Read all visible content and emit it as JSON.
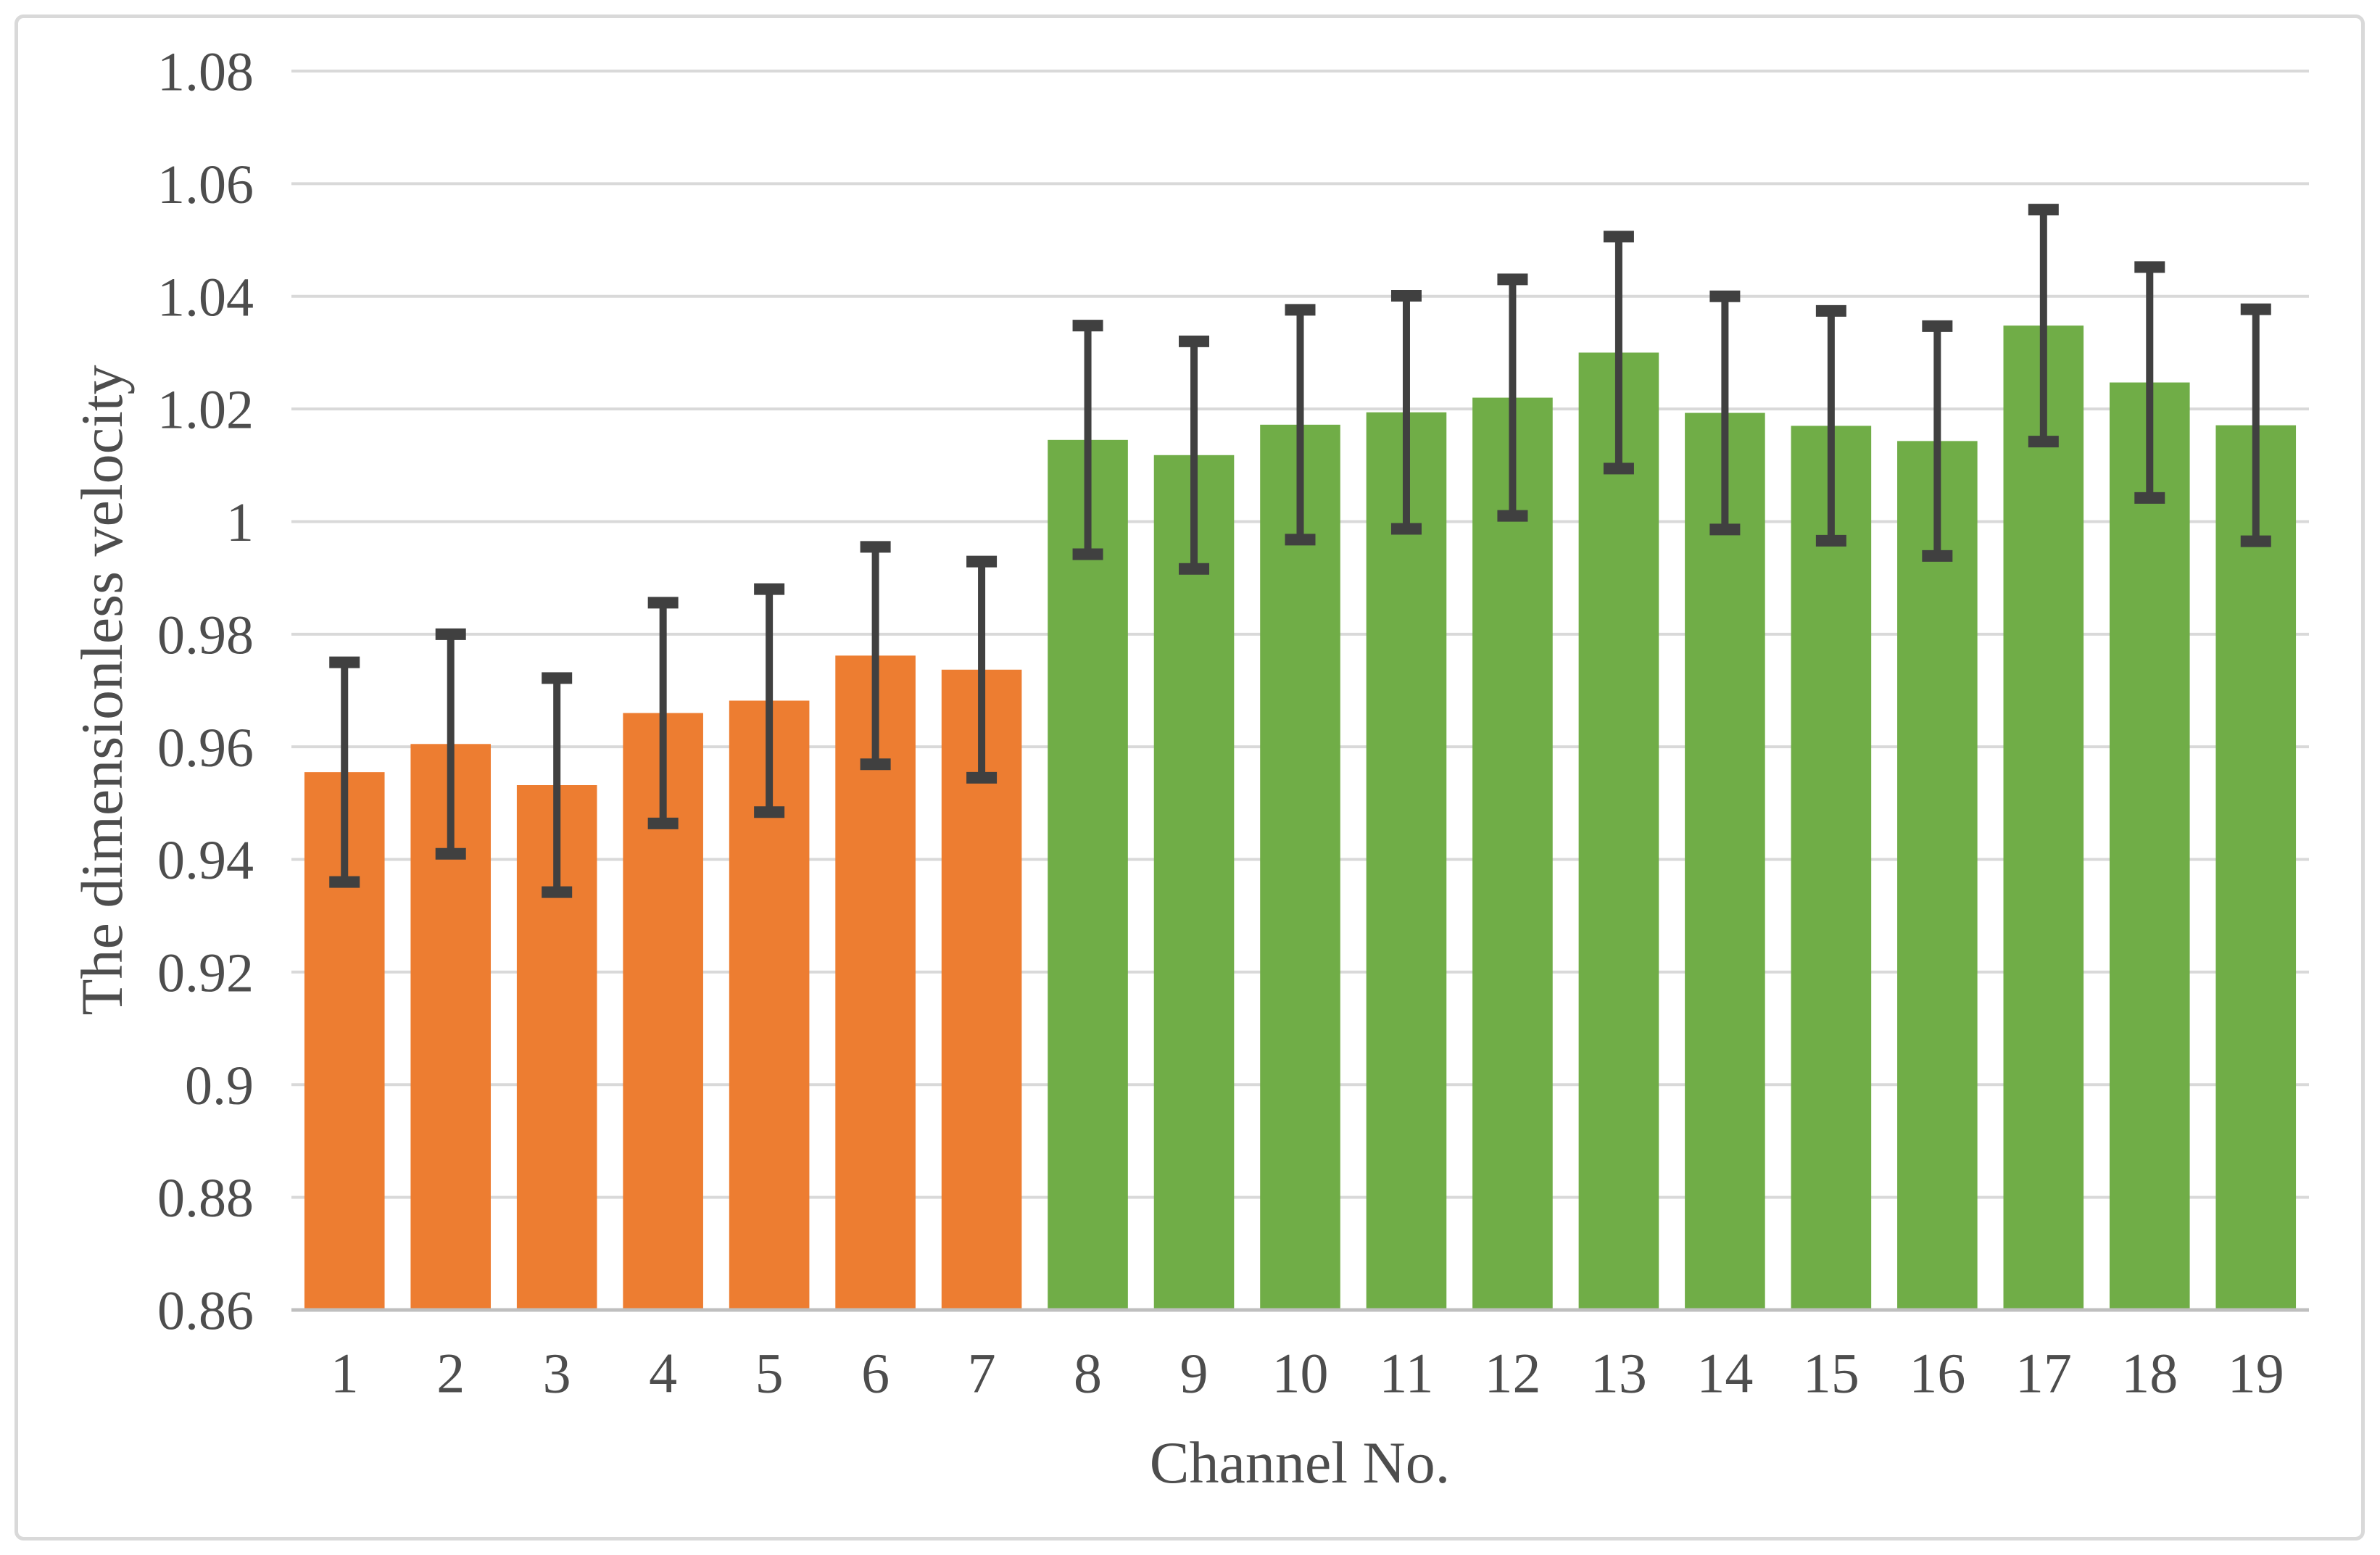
{
  "figure": {
    "background": "#ffffff",
    "border_color": "#d9d9d9"
  },
  "chart_data": {
    "type": "bar",
    "title": "",
    "xlabel": "Channel No.",
    "ylabel": "The dimensionless velocity",
    "categories": [
      "1",
      "2",
      "3",
      "4",
      "5",
      "6",
      "7",
      "8",
      "9",
      "10",
      "11",
      "12",
      "13",
      "14",
      "15",
      "16",
      "17",
      "18",
      "19"
    ],
    "values": [
      0.9555,
      0.9605,
      0.9532,
      0.966,
      0.9682,
      0.9762,
      0.9737,
      1.0145,
      1.0118,
      1.0172,
      1.0194,
      1.022,
      1.03,
      1.0193,
      1.017,
      1.0143,
      1.0348,
      1.0247,
      1.0171
    ],
    "error_bars": {
      "symmetric": true,
      "values": [
        0.0195,
        0.0195,
        0.019,
        0.0196,
        0.0198,
        0.0193,
        0.0192,
        0.0203,
        0.0202,
        0.0204,
        0.0207,
        0.021,
        0.0206,
        0.0207,
        0.0204,
        0.0204,
        0.0206,
        0.0205,
        0.0206
      ]
    },
    "bar_colors": [
      "#ED7D31",
      "#ED7D31",
      "#ED7D31",
      "#ED7D31",
      "#ED7D31",
      "#ED7D31",
      "#ED7D31",
      "#70AD47",
      "#70AD47",
      "#70AD47",
      "#70AD47",
      "#70AD47",
      "#70AD47",
      "#70AD47",
      "#70AD47",
      "#70AD47",
      "#70AD47",
      "#70AD47",
      "#70AD47"
    ],
    "series_colors": {
      "channels_1_to_7": "#ED7D31",
      "channels_8_to_19": "#70AD47"
    },
    "ylim": [
      0.86,
      1.08
    ],
    "yticks": [
      {
        "value": 1.08,
        "label": "1.08"
      },
      {
        "value": 1.06,
        "label": "1.06"
      },
      {
        "value": 1.04,
        "label": "1.04"
      },
      {
        "value": 1.02,
        "label": "1.02"
      },
      {
        "value": 1.0,
        "label": "1"
      },
      {
        "value": 0.98,
        "label": "0.98"
      },
      {
        "value": 0.96,
        "label": "0.96"
      },
      {
        "value": 0.94,
        "label": "0.94"
      },
      {
        "value": 0.92,
        "label": "0.92"
      },
      {
        "value": 0.9,
        "label": "0.9"
      },
      {
        "value": 0.88,
        "label": "0.88"
      },
      {
        "value": 0.86,
        "label": "0.86"
      }
    ],
    "grid": "horizontal",
    "legend": "none",
    "text_color": "#4d4d4d",
    "gridline_color": "#d9d9d9",
    "axis_line_color": "#bfbfbf",
    "error_bar_color": "#404040"
  }
}
